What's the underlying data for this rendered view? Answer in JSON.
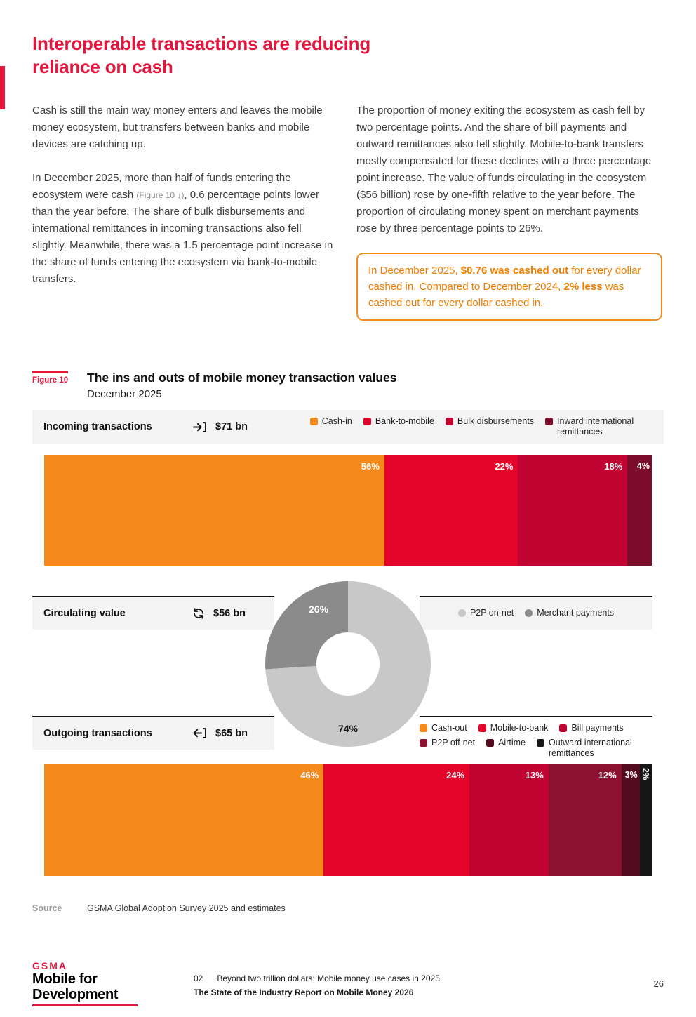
{
  "colors": {
    "accent_red": "#E3173E",
    "callout_orange": "#EF7D00",
    "strip_gray": "#F4F4F4"
  },
  "header": {
    "title_lines": [
      "Interoperable transactions are reducing",
      "reliance on cash"
    ]
  },
  "intro": {
    "p1": "Cash is still the main way money enters and leaves the mobile money ecosystem, but transfers between banks and mobile devices are catching up.",
    "p2_pre": "In December 2025, more than half of funds entering the ecosystem were cash ",
    "figure_link": "(Figure 10 ↓)",
    "p2_post": ", 0.6 percentage points lower than the year before. The share of bulk disbursements and international remittances in incoming transactions also fell slightly. Meanwhile, there was a 1.5 percentage point increase in the share of funds entering the ecosystem via bank-to-mobile transfers.",
    "p3": "The proportion of money exiting the ecosystem as cash fell by two percentage points. And the share of bill payments and outward remittances also fell slightly. Mobile-to-bank transfers mostly compensated for these declines with a three percentage point increase. The value of funds circulating in the ecosystem ($56 billion) rose by one-fifth relative to the year before. The proportion of circulating money spent on merchant payments rose by three percentage points to 26%."
  },
  "callout": {
    "t1": "In December 2025, ",
    "b1": "$0.76 was cashed out",
    "t2": " for every dollar cashed in. Compared to December 2024, ",
    "b2": "2% less",
    "t3": " was cashed out for every dollar cashed in."
  },
  "figure": {
    "tag": "Figure 10",
    "title": "The ins and outs of mobile money transaction values",
    "subtitle": "December 2025"
  },
  "chart_data": [
    {
      "type": "bar",
      "subtype": "stacked-horizontal-percent",
      "title": "Incoming transactions",
      "total": "$71 bn",
      "unit": "%",
      "segments": [
        {
          "label": "Cash-in",
          "value": 56,
          "color": "#F6891C"
        },
        {
          "label": "Bank-to-mobile",
          "value": 22,
          "color": "#E40429"
        },
        {
          "label": "Bulk disbursements",
          "value": 18,
          "color": "#C00330"
        },
        {
          "label": "Inward international remittances",
          "value": 4,
          "color": "#7C0D2A"
        }
      ]
    },
    {
      "type": "pie",
      "subtype": "donut",
      "title": "Circulating value",
      "total": "$56 bn",
      "unit": "%",
      "segments": [
        {
          "label": "P2P on-net",
          "value": 74,
          "color": "#C8C8C8"
        },
        {
          "label": "Merchant payments",
          "value": 26,
          "color": "#8B8B8B"
        }
      ]
    },
    {
      "type": "bar",
      "subtype": "stacked-horizontal-percent",
      "title": "Outgoing transactions",
      "total": "$65 bn",
      "unit": "%",
      "segments": [
        {
          "label": "Cash-out",
          "value": 46,
          "color": "#F6891C"
        },
        {
          "label": "Mobile-to-bank",
          "value": 24,
          "color": "#E40429"
        },
        {
          "label": "Bill payments",
          "value": 13,
          "color": "#C00330"
        },
        {
          "label": "P2P off-net",
          "value": 12,
          "color": "#8C102F"
        },
        {
          "label": "Airtime",
          "value": 3,
          "color": "#530C1F"
        },
        {
          "label": "Outward international remittances",
          "value": 2,
          "color": "#161616"
        }
      ]
    }
  ],
  "source": {
    "label": "Source",
    "text": "GSMA Global Adoption Survey 2025 and estimates"
  },
  "footer": {
    "logo_gsma": "GSMA",
    "logo_line1": "Mobile for",
    "logo_line2": "Development",
    "chapter_no": "02",
    "chapter_title": "Beyond two trillion dollars: Mobile money use cases in 2025",
    "report_title": "The State of the Industry Report on Mobile Money 2026",
    "page_number": "26"
  }
}
